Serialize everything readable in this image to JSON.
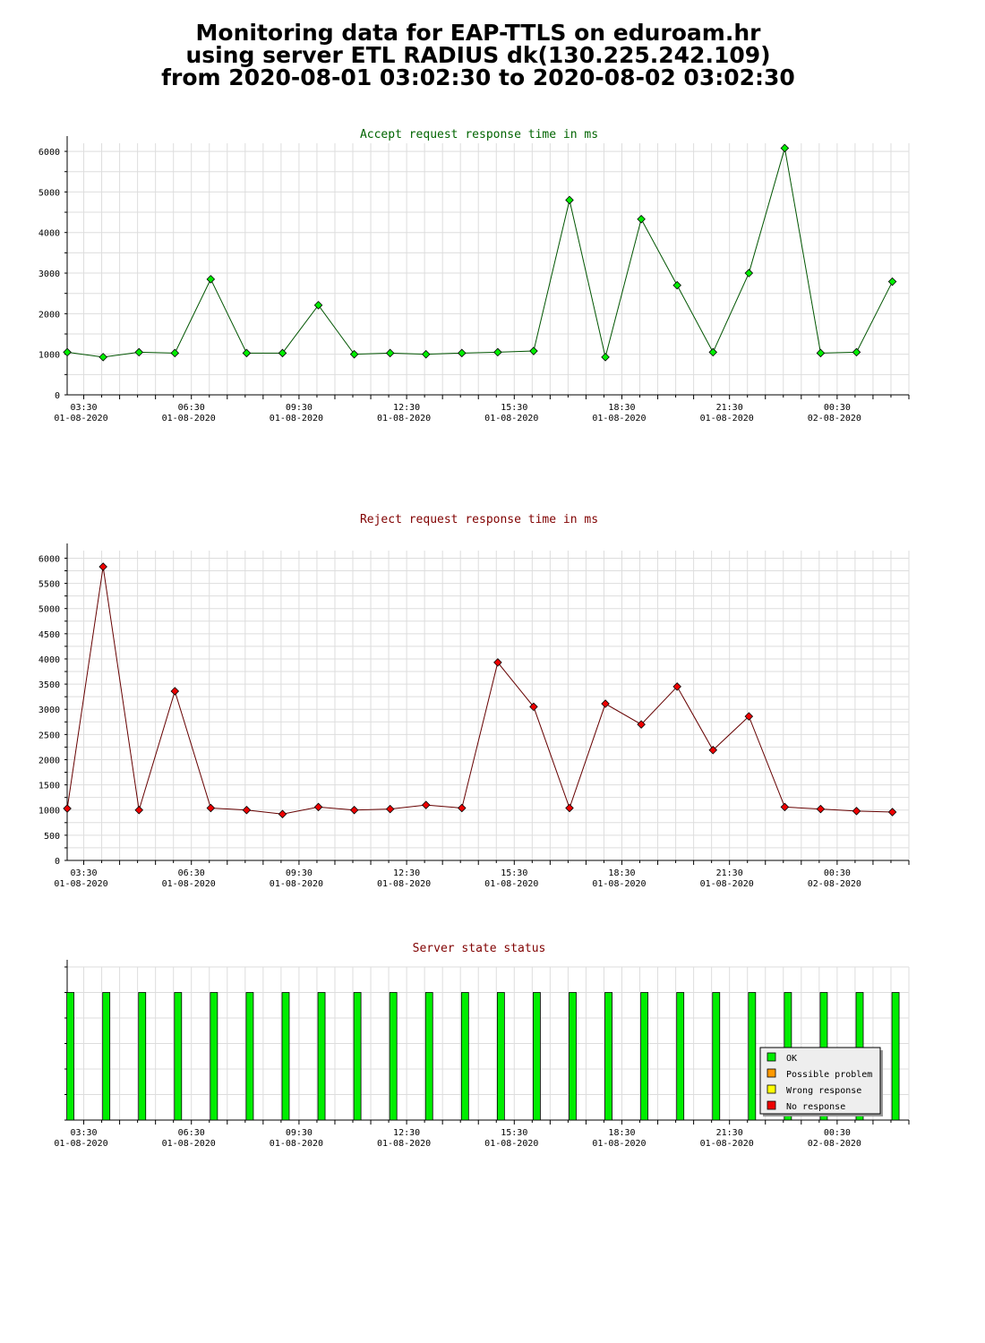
{
  "header": {
    "title_lines": [
      "Monitoring data for EAP-TTLS on eduroam.hr",
      "using server ETL RADIUS dk(130.225.242.109)",
      "from 2020-08-01 03:02:30 to 2020-08-02 03:02:30"
    ]
  },
  "colors": {
    "accept_title": "#006400",
    "reject_title": "#800000",
    "status_title": "#800000",
    "accept_line": "#005500",
    "accept_marker": "#00ee00",
    "reject_line": "#660000",
    "reject_marker": "#ee0000",
    "ok": "#00ee00",
    "possible_problem": "#ff9900",
    "wrong_response": "#ffff00",
    "no_response": "#ee0000",
    "grid": "#dddddd"
  },
  "chart_data": [
    {
      "id": "accept",
      "type": "line",
      "title": "Accept request response time in ms",
      "xlabel": "",
      "ylabel": "",
      "x_range_hours": [
        3.0375,
        26.5
      ],
      "ylim": [
        0,
        6200
      ],
      "y_ticks": [
        0,
        1000,
        2000,
        3000,
        4000,
        5000,
        6000
      ],
      "x_tick_labels": [
        {
          "time": "03:30",
          "date": "01-08-2020",
          "hour": 3.5
        },
        {
          "time": "06:30",
          "date": "01-08-2020",
          "hour": 6.5
        },
        {
          "time": "09:30",
          "date": "01-08-2020",
          "hour": 9.5
        },
        {
          "time": "12:30",
          "date": "01-08-2020",
          "hour": 12.5
        },
        {
          "time": "15:30",
          "date": "01-08-2020",
          "hour": 15.5
        },
        {
          "time": "18:30",
          "date": "01-08-2020",
          "hour": 18.5
        },
        {
          "time": "21:30",
          "date": "01-08-2020",
          "hour": 21.5
        },
        {
          "time": "00:30",
          "date": "02-08-2020",
          "hour": 24.5
        }
      ],
      "grid": true,
      "x_hours": [
        3.04,
        4.04,
        5.04,
        6.04,
        7.04,
        8.04,
        9.04,
        10.04,
        11.04,
        12.04,
        13.04,
        14.04,
        15.04,
        16.04,
        17.04,
        18.04,
        19.04,
        20.04,
        21.04,
        22.04,
        23.04,
        24.04,
        25.04,
        26.04
      ],
      "values": [
        1050,
        930,
        1050,
        1030,
        2850,
        1030,
        1030,
        2210,
        1000,
        1030,
        1000,
        1030,
        1050,
        1080,
        4800,
        930,
        4330,
        2700,
        1050,
        3000,
        6080,
        1030,
        1050,
        2790
      ]
    },
    {
      "id": "reject",
      "type": "line",
      "title": "Reject request response time in ms",
      "xlabel": "",
      "ylabel": "",
      "x_range_hours": [
        3.0375,
        26.5
      ],
      "ylim": [
        0,
        6150
      ],
      "y_ticks": [
        0,
        500,
        1000,
        1500,
        2000,
        2500,
        3000,
        3500,
        4000,
        4500,
        5000,
        5500,
        6000
      ],
      "x_tick_labels": [
        {
          "time": "03:30",
          "date": "01-08-2020",
          "hour": 3.5
        },
        {
          "time": "06:30",
          "date": "01-08-2020",
          "hour": 6.5
        },
        {
          "time": "09:30",
          "date": "01-08-2020",
          "hour": 9.5
        },
        {
          "time": "12:30",
          "date": "01-08-2020",
          "hour": 12.5
        },
        {
          "time": "15:30",
          "date": "01-08-2020",
          "hour": 15.5
        },
        {
          "time": "18:30",
          "date": "01-08-2020",
          "hour": 18.5
        },
        {
          "time": "21:30",
          "date": "01-08-2020",
          "hour": 21.5
        },
        {
          "time": "00:30",
          "date": "02-08-2020",
          "hour": 24.5
        }
      ],
      "grid": true,
      "x_hours": [
        3.04,
        4.04,
        5.04,
        6.04,
        7.04,
        8.04,
        9.04,
        10.04,
        11.04,
        12.04,
        13.04,
        14.04,
        15.04,
        16.04,
        17.04,
        18.04,
        19.04,
        20.04,
        21.04,
        22.04,
        23.04,
        24.04,
        25.04,
        26.04
      ],
      "values": [
        1030,
        5830,
        1000,
        3360,
        1040,
        1000,
        920,
        1060,
        1000,
        1020,
        1100,
        1040,
        3930,
        3050,
        1040,
        3110,
        2700,
        3450,
        2190,
        2860,
        1060,
        1020,
        980,
        960
      ]
    },
    {
      "id": "status",
      "type": "bar",
      "title": "Server state status",
      "xlabel": "",
      "ylabel": "",
      "x_range_hours": [
        3.0375,
        26.5
      ],
      "ylim": [
        0,
        1.2
      ],
      "x_tick_labels": [
        {
          "time": "03:30",
          "date": "01-08-2020",
          "hour": 3.5
        },
        {
          "time": "06:30",
          "date": "01-08-2020",
          "hour": 6.5
        },
        {
          "time": "09:30",
          "date": "01-08-2020",
          "hour": 9.5
        },
        {
          "time": "12:30",
          "date": "01-08-2020",
          "hour": 12.5
        },
        {
          "time": "15:30",
          "date": "01-08-2020",
          "hour": 15.5
        },
        {
          "time": "18:30",
          "date": "01-08-2020",
          "hour": 18.5
        },
        {
          "time": "21:30",
          "date": "01-08-2020",
          "hour": 21.5
        },
        {
          "time": "00:30",
          "date": "02-08-2020",
          "hour": 24.5
        }
      ],
      "grid": true,
      "x_hours": [
        3.04,
        4.04,
        5.04,
        6.04,
        7.04,
        8.04,
        9.04,
        10.04,
        11.04,
        12.04,
        13.04,
        14.04,
        15.04,
        16.04,
        17.04,
        18.04,
        19.04,
        20.04,
        21.04,
        22.04,
        23.04,
        24.04,
        25.04,
        26.04
      ],
      "states": [
        "OK",
        "OK",
        "OK",
        "OK",
        "OK",
        "OK",
        "OK",
        "OK",
        "OK",
        "OK",
        "OK",
        "OK",
        "OK",
        "OK",
        "OK",
        "OK",
        "OK",
        "OK",
        "OK",
        "OK",
        "OK",
        "OK",
        "OK",
        "OK"
      ],
      "legend_placement": "bottom-right",
      "legend": [
        {
          "label": "OK",
          "color_key": "ok"
        },
        {
          "label": "Possible problem",
          "color_key": "possible_problem"
        },
        {
          "label": "Wrong response",
          "color_key": "wrong_response"
        },
        {
          "label": "No response",
          "color_key": "no_response"
        }
      ]
    }
  ]
}
